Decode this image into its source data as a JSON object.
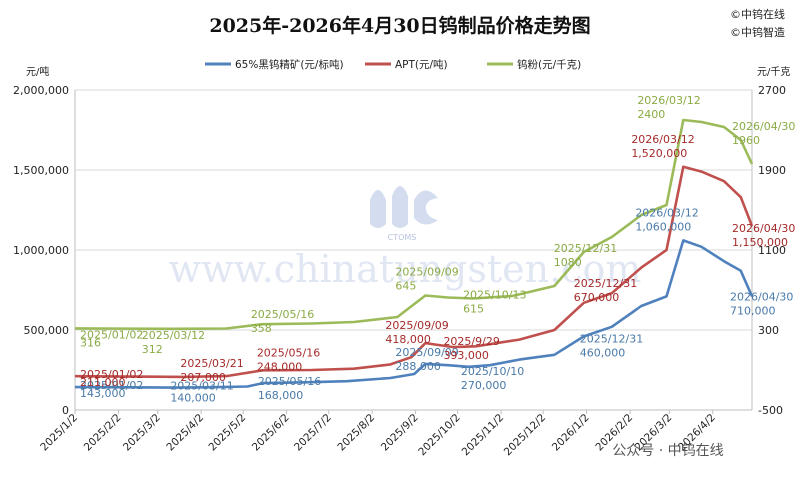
{
  "brand_lines": [
    "©中钨在线",
    "©中钨智造"
  ],
  "watermark": {
    "text": "www.chinatungsten.com",
    "logo_text": "CTOMS"
  },
  "footer": "公众号 · 中钨在线",
  "chart_data": {
    "type": "line",
    "title": "2025年-2026年4月30日钨制品价格走势图",
    "y_left": {
      "unit": "元/吨",
      "range": [
        0,
        2000000
      ],
      "ticks": [
        "0",
        "500,000",
        "1,000,000",
        "1,500,000",
        "2,000,000"
      ]
    },
    "y_right": {
      "unit": "元/千克",
      "range": [
        -500,
        2700
      ],
      "ticks": [
        "-500",
        "300",
        "1100",
        "1900",
        "2700"
      ]
    },
    "x_ticks": [
      "2025/1/2",
      "2025/2/2",
      "2025/3/2",
      "2025/4/2",
      "2025/5/2",
      "2025/6/2",
      "2025/7/2",
      "2025/8/2",
      "2025/9/2",
      "2025/10/2",
      "2025/11/2",
      "2025/12/2",
      "2026/1/2",
      "2026/2/2",
      "2026/3/2",
      "2026/4/2"
    ],
    "x_range": [
      "2025/1/2",
      "2026/4/30"
    ],
    "grid": "horizontal",
    "legend": "top",
    "series": [
      {
        "name": "65%黑钨精矿(元/标吨)",
        "axis": "left",
        "color": "#4f81bd",
        "points": [
          [
            "2025/1/2",
            143000
          ],
          [
            "2025/2/10",
            142000
          ],
          [
            "2025/3/11",
            140000
          ],
          [
            "2025/4/5",
            142000
          ],
          [
            "2025/5/5",
            147000
          ],
          [
            "2025/5/16",
            168000
          ],
          [
            "2025/6/15",
            173000
          ],
          [
            "2025/7/15",
            180000
          ],
          [
            "2025/8/15",
            200000
          ],
          [
            "2025/9/1",
            225000
          ],
          [
            "2025/9/9",
            288000
          ],
          [
            "2025/9/25",
            280000
          ],
          [
            "2025/10/10",
            270000
          ],
          [
            "2025/10/25",
            280000
          ],
          [
            "2025/11/15",
            315000
          ],
          [
            "2025/12/10",
            345000
          ],
          [
            "2025/12/31",
            460000
          ],
          [
            "2026/1/20",
            520000
          ],
          [
            "2026/2/10",
            650000
          ],
          [
            "2026/2/28",
            710000
          ],
          [
            "2026/3/12",
            1060000
          ],
          [
            "2026/3/25",
            1020000
          ],
          [
            "2026/4/10",
            930000
          ],
          [
            "2026/4/22",
            870000
          ],
          [
            "2026/4/30",
            710000
          ]
        ]
      },
      {
        "name": "APT(元/吨)",
        "axis": "left",
        "color": "#c0504d",
        "points": [
          [
            "2025/1/2",
            211000
          ],
          [
            "2025/2/15",
            209000
          ],
          [
            "2025/3/21",
            207000
          ],
          [
            "2025/4/20",
            212000
          ],
          [
            "2025/5/16",
            248000
          ],
          [
            "2025/6/20",
            250000
          ],
          [
            "2025/7/20",
            258000
          ],
          [
            "2025/8/15",
            285000
          ],
          [
            "2025/8/30",
            330000
          ],
          [
            "2025/9/9",
            418000
          ],
          [
            "2025/9/29",
            393000
          ],
          [
            "2025/10/15",
            398000
          ],
          [
            "2025/11/15",
            440000
          ],
          [
            "2025/12/10",
            500000
          ],
          [
            "2025/12/31",
            670000
          ],
          [
            "2026/1/20",
            730000
          ],
          [
            "2026/2/10",
            890000
          ],
          [
            "2026/2/28",
            1000000
          ],
          [
            "2026/3/12",
            1520000
          ],
          [
            "2026/3/25",
            1490000
          ],
          [
            "2026/4/10",
            1430000
          ],
          [
            "2026/4/22",
            1330000
          ],
          [
            "2026/4/30",
            1150000
          ]
        ]
      },
      {
        "name": "钨粉(元/千克)",
        "axis": "right",
        "color": "#9bbb59",
        "points": [
          [
            "2025/1/2",
            316
          ],
          [
            "2025/3/12",
            312
          ],
          [
            "2025/4/20",
            315
          ],
          [
            "2025/5/16",
            358
          ],
          [
            "2025/6/20",
            365
          ],
          [
            "2025/7/20",
            380
          ],
          [
            "2025/8/20",
            430
          ],
          [
            "2025/9/9",
            645
          ],
          [
            "2025/9/25",
            625
          ],
          [
            "2025/10/13",
            615
          ],
          [
            "2025/11/10",
            640
          ],
          [
            "2025/12/10",
            740
          ],
          [
            "2025/12/31",
            1080
          ],
          [
            "2026/1/20",
            1230
          ],
          [
            "2026/2/10",
            1450
          ],
          [
            "2026/2/28",
            1550
          ],
          [
            "2026/3/12",
            2400
          ],
          [
            "2026/3/25",
            2380
          ],
          [
            "2026/4/10",
            2330
          ],
          [
            "2026/4/22",
            2200
          ],
          [
            "2026/4/30",
            1960
          ]
        ]
      }
    ],
    "annotations": [
      {
        "series": 0,
        "date": "2025/1/2",
        "lines": [
          "2025/01/02",
          "143,000"
        ]
      },
      {
        "series": 0,
        "date": "2025/3/11",
        "lines": [
          "2025/03/11",
          "140,000"
        ]
      },
      {
        "series": 0,
        "date": "2025/5/16",
        "lines": [
          "2025/05/16",
          "168,000"
        ]
      },
      {
        "series": 0,
        "date": "2025/9/9",
        "lines": [
          "2025/09/09",
          "288,000"
        ]
      },
      {
        "series": 0,
        "date": "2025/10/10",
        "lines": [
          "2025/10/10",
          "270,000"
        ]
      },
      {
        "series": 0,
        "date": "2025/12/31",
        "lines": [
          "2025/12/31",
          "460,000"
        ]
      },
      {
        "series": 0,
        "date": "2026/3/12",
        "lines": [
          "2026/03/12",
          "1,060,000"
        ]
      },
      {
        "series": 0,
        "date": "2026/4/30",
        "lines": [
          "2026/04/30",
          "710,000"
        ]
      },
      {
        "series": 1,
        "date": "2025/1/2",
        "lines": [
          "2025/01/02",
          "211,000"
        ]
      },
      {
        "series": 1,
        "date": "2025/3/21",
        "lines": [
          "2025/03/21",
          "207,000"
        ]
      },
      {
        "series": 1,
        "date": "2025/5/16",
        "lines": [
          "2025/05/16",
          "248,000"
        ]
      },
      {
        "series": 1,
        "date": "2025/9/9",
        "lines": [
          "2025/09/09",
          "418,000"
        ]
      },
      {
        "series": 1,
        "date": "2025/9/29",
        "lines": [
          "2025/9/29",
          "393,000"
        ]
      },
      {
        "series": 1,
        "date": "2025/12/31",
        "lines": [
          "2025/12/31",
          "670,000"
        ]
      },
      {
        "series": 1,
        "date": "2026/3/12",
        "lines": [
          "2026/03/12",
          "1,520,000"
        ]
      },
      {
        "series": 1,
        "date": "2026/4/30",
        "lines": [
          "2026/04/30",
          "1,150,000"
        ]
      },
      {
        "series": 2,
        "date": "2025/1/2",
        "lines": [
          "2025/01/02",
          "316"
        ]
      },
      {
        "series": 2,
        "date": "2025/3/12",
        "lines": [
          "2025/03/12",
          "312"
        ]
      },
      {
        "series": 2,
        "date": "2025/5/16",
        "lines": [
          "2025/05/16",
          "358"
        ]
      },
      {
        "series": 2,
        "date": "2025/9/9",
        "lines": [
          "2025/09/09",
          "645"
        ]
      },
      {
        "series": 2,
        "date": "2025/10/13",
        "lines": [
          "2025/10/13",
          "615"
        ]
      },
      {
        "series": 2,
        "date": "2025/12/31",
        "lines": [
          "2025/12/31",
          "1080"
        ]
      },
      {
        "series": 2,
        "date": "2026/3/12",
        "lines": [
          "2026/03/12",
          "2400"
        ]
      },
      {
        "series": 2,
        "date": "2026/4/30",
        "lines": [
          "2026/04/30",
          "1960"
        ]
      }
    ]
  }
}
